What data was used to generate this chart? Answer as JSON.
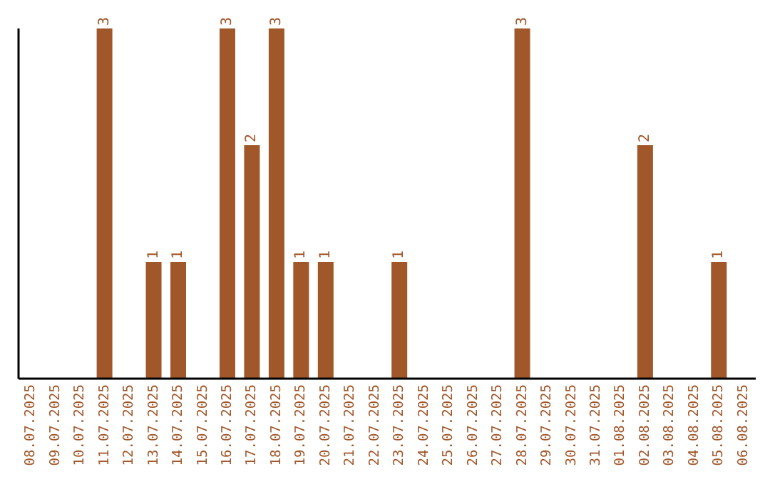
{
  "chart_data": {
    "type": "bar",
    "categories": [
      "08.07.2025",
      "09.07.2025",
      "10.07.2025",
      "11.07.2025",
      "12.07.2025",
      "13.07.2025",
      "14.07.2025",
      "15.07.2025",
      "16.07.2025",
      "17.07.2025",
      "18.07.2025",
      "19.07.2025",
      "20.07.2025",
      "21.07.2025",
      "22.07.2025",
      "23.07.2025",
      "24.07.2025",
      "25.07.2025",
      "26.07.2025",
      "27.07.2025",
      "28.07.2025",
      "29.07.2025",
      "30.07.2025",
      "31.07.2025",
      "01.08.2025",
      "02.08.2025",
      "03.08.2025",
      "04.08.2025",
      "05.08.2025",
      "06.08.2025"
    ],
    "values": [
      0,
      0,
      0,
      3,
      0,
      1,
      1,
      0,
      3,
      2,
      3,
      1,
      1,
      0,
      0,
      1,
      0,
      0,
      0,
      0,
      3,
      0,
      0,
      0,
      0,
      2,
      0,
      0,
      1,
      0
    ],
    "value_labels": [
      null,
      null,
      null,
      "3",
      null,
      "1",
      "1",
      null,
      "3",
      "2",
      "3",
      "1",
      "1",
      null,
      null,
      "1",
      null,
      null,
      null,
      null,
      "3",
      null,
      null,
      null,
      null,
      "2",
      null,
      null,
      "1",
      null
    ],
    "color": "#a0572a",
    "grid": false,
    "legend": false,
    "tick_labels": "x"
  }
}
